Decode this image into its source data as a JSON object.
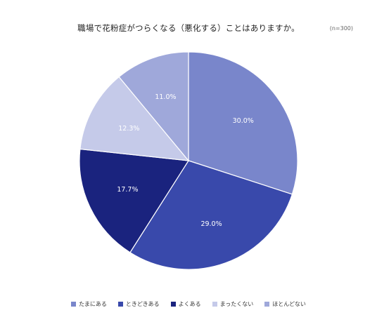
{
  "title": "職場で花粉症がつらくなる（悪化する）ことはありますか。",
  "sample_note": "(n=300)",
  "chart_data": {
    "type": "pie",
    "title": "職場で花粉症がつらくなる（悪化する）ことはありますか。",
    "categories": [
      "たまにある",
      "ときどきある",
      "よくある",
      "まったくない",
      "ほとんどない"
    ],
    "values": [
      30.0,
      29.0,
      17.7,
      12.3,
      11.0
    ],
    "value_labels": [
      "30.0%",
      "29.0%",
      "17.7%",
      "12.3%",
      "11.0%"
    ],
    "colors": [
      "#7986CB",
      "#3949AB",
      "#1A237E",
      "#C5CAE9",
      "#9FA8DA"
    ],
    "label_colors": [
      "#ffffff",
      "#ffffff",
      "#ffffff",
      "#ffffff",
      "#ffffff"
    ],
    "start": "12 o'clock",
    "direction": "clockwise",
    "legend_position": "bottom"
  }
}
